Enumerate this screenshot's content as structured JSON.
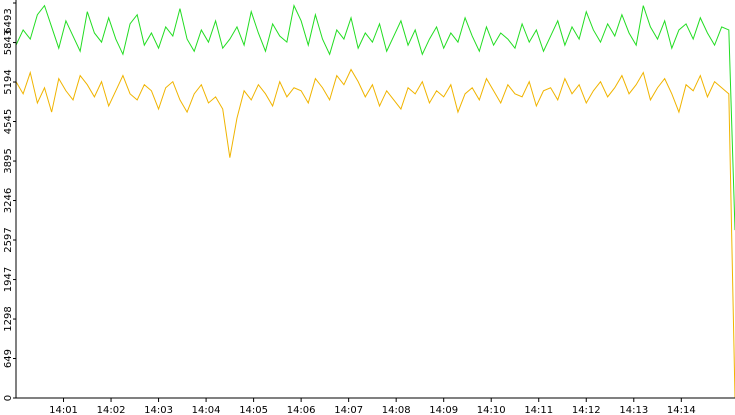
{
  "chart_data": {
    "type": "line",
    "x": [
      840,
      840.15,
      840.3,
      840.45,
      840.6,
      840.75,
      840.9,
      841.05,
      841.2,
      841.35,
      841.5,
      841.65,
      841.8,
      841.95,
      842.1,
      842.25,
      842.4,
      842.55,
      842.7,
      842.85,
      843,
      843.15,
      843.3,
      843.45,
      843.6,
      843.75,
      843.9,
      844.05,
      844.2,
      844.35,
      844.5,
      844.65,
      844.8,
      844.95,
      845.1,
      845.25,
      845.4,
      845.55,
      845.7,
      845.85,
      846,
      846.15,
      846.3,
      846.45,
      846.6,
      846.75,
      846.9,
      847.05,
      847.2,
      847.35,
      847.5,
      847.65,
      847.8,
      847.95,
      848.1,
      848.25,
      848.4,
      848.55,
      848.7,
      848.85,
      849,
      849.15,
      849.3,
      849.45,
      849.6,
      849.75,
      849.9,
      850.05,
      850.2,
      850.35,
      850.5,
      850.65,
      850.8,
      850.95,
      851.1,
      851.25,
      851.4,
      851.55,
      851.7,
      851.85,
      852,
      852.15,
      852.3,
      852.45,
      852.6,
      852.75,
      852.9,
      853.05,
      853.2,
      853.35,
      853.5,
      853.65,
      853.8,
      853.95,
      854.1,
      854.25,
      854.4,
      854.55,
      854.7,
      854.85,
      855,
      855.13
    ],
    "series": [
      {
        "color": "#22dd22",
        "values": [
          5800,
          6050,
          5900,
          6300,
          6450,
          6100,
          5750,
          6200,
          5950,
          5700,
          6350,
          6000,
          5850,
          6250,
          5900,
          5650,
          6150,
          6300,
          5800,
          6000,
          5750,
          6100,
          5950,
          6400,
          5900,
          5700,
          6050,
          5850,
          6200,
          5750,
          5900,
          6100,
          5800,
          6350,
          6000,
          5700,
          6150,
          5950,
          5850,
          6450,
          6200,
          5800,
          6300,
          5900,
          5650,
          6050,
          5900,
          6250,
          5750,
          6000,
          5850,
          6150,
          5700,
          5950,
          6200,
          5800,
          6050,
          5650,
          5900,
          6100,
          5750,
          6000,
          5850,
          6250,
          5950,
          5700,
          6100,
          5800,
          6000,
          5900,
          5750,
          6150,
          5850,
          6050,
          5700,
          5950,
          6200,
          5800,
          6100,
          5900,
          6350,
          6050,
          5850,
          6150,
          5950,
          6300,
          6000,
          5800,
          6450,
          6100,
          5900,
          6200,
          5750,
          6050,
          6150,
          5900,
          6250,
          6000,
          5800,
          6100,
          6050,
          2760
        ]
      },
      {
        "color": "#f0b400",
        "values": [
          5200,
          5000,
          5350,
          4850,
          5100,
          4700,
          5250,
          5050,
          4900,
          5300,
          5150,
          4950,
          5200,
          4800,
          5050,
          5300,
          5000,
          4900,
          5150,
          5050,
          4750,
          5100,
          5200,
          4900,
          4700,
          5000,
          5150,
          4850,
          4950,
          4750,
          3950,
          4600,
          5050,
          4900,
          5150,
          5000,
          4800,
          5200,
          4950,
          5100,
          5050,
          4850,
          5250,
          5100,
          4900,
          5300,
          5150,
          5400,
          5200,
          4950,
          5150,
          4800,
          5050,
          4900,
          4750,
          5100,
          5000,
          5200,
          4850,
          5050,
          4950,
          5150,
          4700,
          5000,
          5100,
          4900,
          5250,
          5050,
          4850,
          5150,
          5000,
          4950,
          5200,
          4800,
          5050,
          5100,
          4900,
          5250,
          5000,
          5150,
          4850,
          5050,
          5200,
          4950,
          5100,
          5300,
          5000,
          5150,
          5350,
          4900,
          5100,
          5250,
          5000,
          4700,
          5150,
          5050,
          5300,
          4950,
          5200,
          5100,
          5000,
          0
        ]
      }
    ],
    "xlim": [
      840,
      855.13
    ],
    "xticks": [
      {
        "value": 841,
        "label": "14:01"
      },
      {
        "value": 842,
        "label": "14:02"
      },
      {
        "value": 843,
        "label": "14:03"
      },
      {
        "value": 844,
        "label": "14:04"
      },
      {
        "value": 845,
        "label": "14:05"
      },
      {
        "value": 846,
        "label": "14:06"
      },
      {
        "value": 847,
        "label": "14:07"
      },
      {
        "value": 848,
        "label": "14:08"
      },
      {
        "value": 849,
        "label": "14:09"
      },
      {
        "value": 850,
        "label": "14:10"
      },
      {
        "value": 851,
        "label": "14:11"
      },
      {
        "value": 852,
        "label": "14:12"
      },
      {
        "value": 853,
        "label": "14:13"
      },
      {
        "value": 854,
        "label": "14:14"
      }
    ],
    "ylim": [
      0,
      6493
    ],
    "yticks": [
      0,
      649,
      1298,
      1947,
      2597,
      3246,
      3895,
      4545,
      5194,
      5843,
      6493
    ]
  }
}
